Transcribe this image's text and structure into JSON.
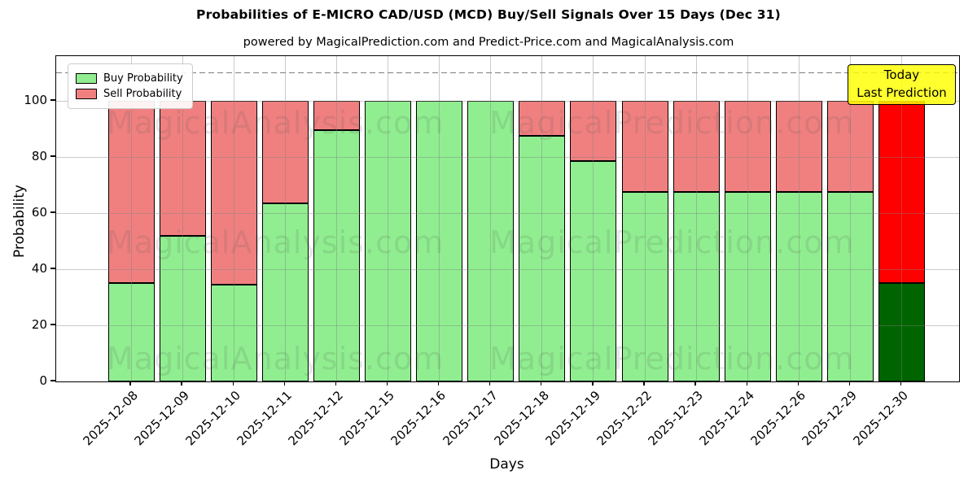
{
  "chart_data": {
    "type": "bar",
    "stacked": true,
    "title": "Probabilities of E-MICRO CAD/USD (MCD) Buy/Sell Signals Over 15 Days (Dec 31)",
    "subtitle": "powered by MagicalPrediction.com and Predict-Price.com and MagicalAnalysis.com",
    "xlabel": "Days",
    "ylabel": "Probability",
    "ylim": [
      0,
      116
    ],
    "yticks": [
      0,
      20,
      40,
      60,
      80,
      100
    ],
    "dashed_guideline_y": 110,
    "grid": "on",
    "legend_position": "upper left",
    "categories": [
      "2025-12-08",
      "2025-12-09",
      "2025-12-10",
      "2025-12-11",
      "2025-12-12",
      "2025-12-15",
      "2025-12-16",
      "2025-12-17",
      "2025-12-18",
      "2025-12-19",
      "2025-12-22",
      "2025-12-23",
      "2025-12-24",
      "2025-12-26",
      "2025-12-29",
      "2025-12-30"
    ],
    "series": [
      {
        "name": "Buy Probability",
        "color": "#90ee90",
        "values": [
          35,
          52,
          34.5,
          63.5,
          89.5,
          100,
          100,
          100,
          87.5,
          78.5,
          67.5,
          67.5,
          67.5,
          67.5,
          67.5,
          35
        ]
      },
      {
        "name": "Sell Probability",
        "color": "#f08080",
        "values": [
          65,
          48,
          65.5,
          36.5,
          10.5,
          0,
          0,
          0,
          12.5,
          21.5,
          32.5,
          32.5,
          32.5,
          32.5,
          32.5,
          65
        ]
      }
    ],
    "today_bar": {
      "category": "2025-12-30",
      "index": 15,
      "buy_color": "#006400",
      "sell_color": "#ff0000"
    },
    "annotation_box": {
      "line1": "Today",
      "line2": "Last Prediction",
      "bg_color": "#ffff00"
    },
    "watermarks": {
      "left": "MagicalAnalysis.com",
      "right": "MagicalPrediction.com"
    }
  }
}
